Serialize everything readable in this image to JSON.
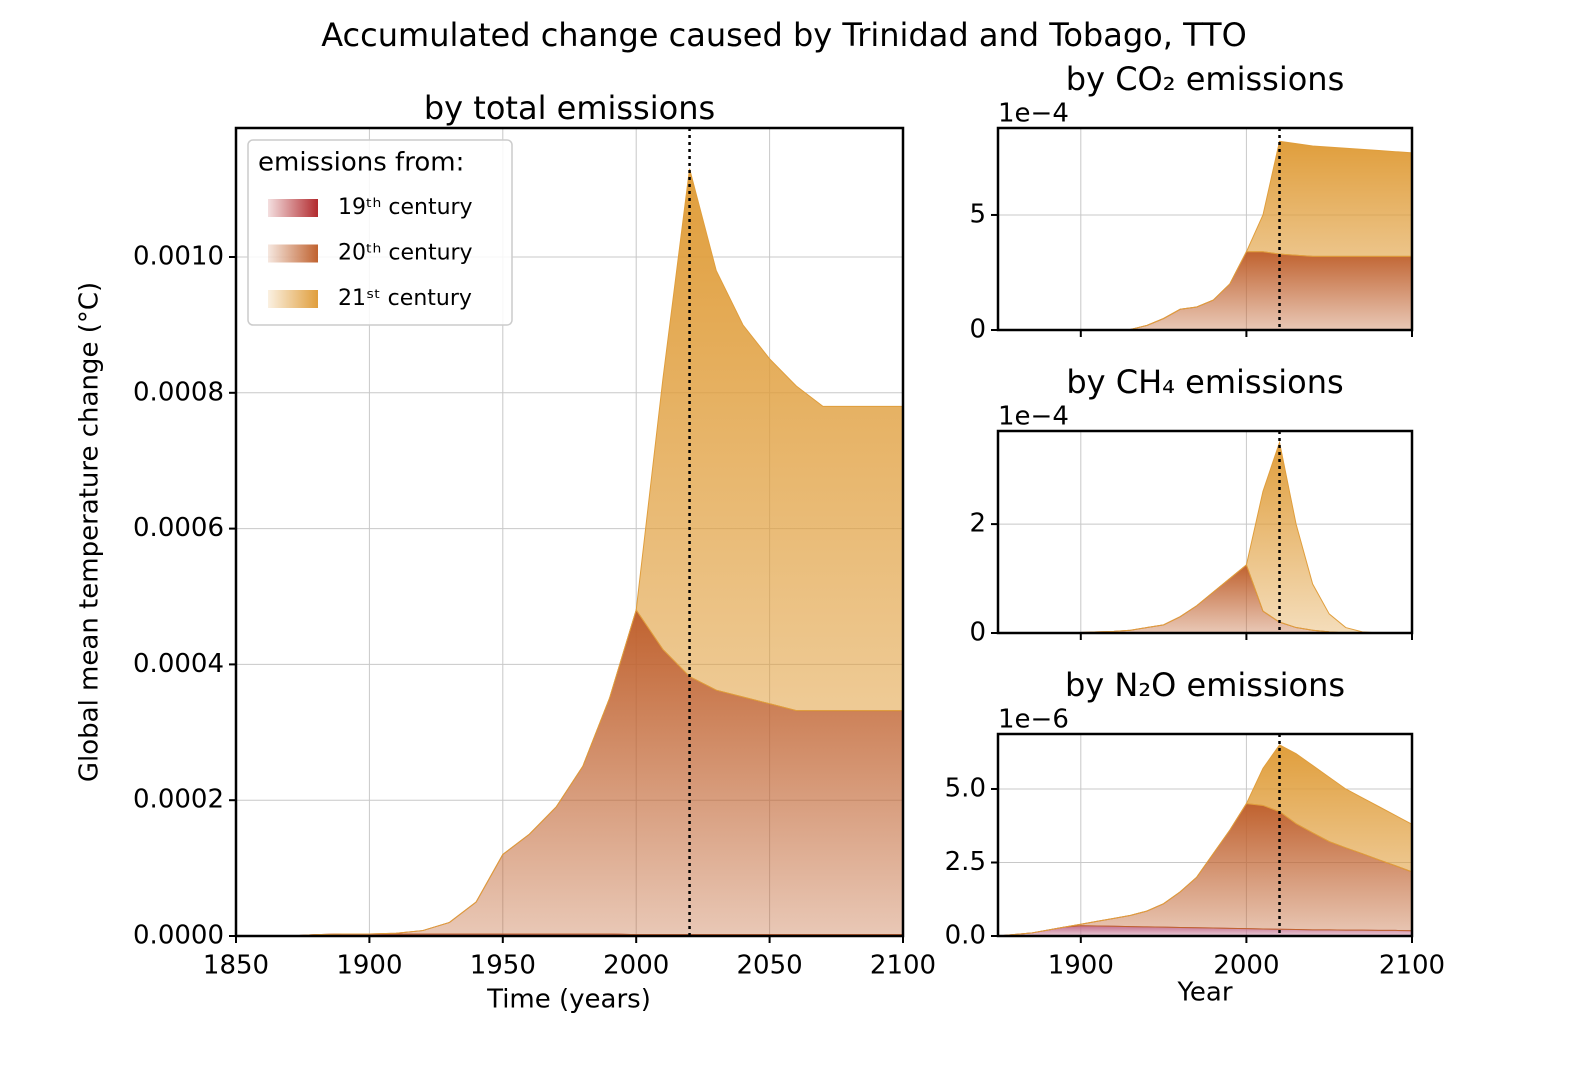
{
  "title": "Accumulated change caused by Trinidad and Tobago, TTO",
  "chart_data": [
    {
      "type": "area",
      "title": "by total emissions",
      "x_label": "Time (years)",
      "y_label": "Global mean temperature change (°C)",
      "x": [
        1850,
        1860,
        1870,
        1880,
        1890,
        1900,
        1910,
        1920,
        1930,
        1940,
        1950,
        1960,
        1970,
        1980,
        1990,
        2000,
        2010,
        2020,
        2030,
        2040,
        2050,
        2060,
        2070,
        2080,
        2090,
        2100
      ],
      "xlim": [
        1850,
        2100
      ],
      "xticks": [
        1850,
        1900,
        1950,
        2000,
        2050,
        2100
      ],
      "ylim": [
        0,
        0.00119
      ],
      "yticks": [
        {
          "value": 0,
          "label": "0.0000"
        },
        {
          "value": 0.0002,
          "label": "0.0002"
        },
        {
          "value": 0.0004,
          "label": "0.0004"
        },
        {
          "value": 0.0006,
          "label": "0.0006"
        },
        {
          "value": 0.0008,
          "label": "0.0008"
        },
        {
          "value": 0.001,
          "label": "0.0010"
        }
      ],
      "grid": true,
      "vline": 2020,
      "legend_title": "emissions from:",
      "legend": "upper left",
      "series": [
        {
          "name": "19ᵗʰ century",
          "color": "#b22a2e",
          "values": [
            0,
            0,
            0,
            2e-06,
            3e-06,
            3e-06,
            3e-06,
            3e-06,
            3e-06,
            3e-06,
            3e-06,
            3e-06,
            3e-06,
            3e-06,
            3e-06,
            2e-06,
            2e-06,
            2e-06,
            2e-06,
            2e-06,
            2e-06,
            2e-06,
            2e-06,
            2e-06,
            2e-06,
            2e-06
          ]
        },
        {
          "name": "20ᵗʰ century",
          "color": "#c0622f",
          "values": [
            0,
            0,
            0,
            0,
            0,
            0,
            1e-06,
            5e-06,
            1.7e-05,
            4.7e-05,
            0.000117,
            0.000147,
            0.000187,
            0.000247,
            0.000347,
            0.000478,
            0.00042,
            0.00038,
            0.00036,
            0.00035,
            0.00034,
            0.00033,
            0.00033,
            0.00033,
            0.00033,
            0.00033
          ]
        },
        {
          "name": "21ˢᵗ century",
          "color": "#e09e3c",
          "values": [
            0,
            0,
            0,
            0,
            0,
            0,
            0,
            0,
            0,
            0,
            0,
            0,
            0,
            0,
            0,
            0,
            0.000398,
            0.000748,
            0.000618,
            0.000548,
            0.000508,
            0.000478,
            0.000448,
            0.000448,
            0.000448,
            0.000448
          ]
        }
      ]
    },
    {
      "type": "area",
      "title": "by CO₂ emissions",
      "offset_label": "1e−4",
      "x": [
        1850,
        1860,
        1870,
        1880,
        1890,
        1900,
        1910,
        1920,
        1930,
        1940,
        1950,
        1960,
        1970,
        1980,
        1990,
        2000,
        2010,
        2020,
        2030,
        2040,
        2050,
        2060,
        2070,
        2080,
        2090,
        2100
      ],
      "xlim": [
        1850,
        2100
      ],
      "xticks": [
        1900,
        2000,
        2100
      ],
      "xtick_labels": false,
      "ylim": [
        0,
        8.78
      ],
      "yticks": [
        0,
        5
      ],
      "grid": true,
      "vline": 2020,
      "series": [
        {
          "color": "#b22a2e",
          "values": [
            0,
            0,
            0,
            0,
            0,
            0,
            0,
            0,
            0,
            0,
            0,
            0,
            0,
            0,
            0,
            0,
            0,
            0,
            0,
            0,
            0,
            0,
            0,
            0,
            0,
            0
          ]
        },
        {
          "color": "#c0622f",
          "values": [
            0,
            0,
            0,
            0,
            0,
            0,
            0,
            0,
            0.02,
            0.2,
            0.5,
            0.9,
            1.0,
            1.3,
            2.0,
            3.4,
            3.4,
            3.3,
            3.25,
            3.2,
            3.2,
            3.2,
            3.2,
            3.2,
            3.2,
            3.2
          ]
        },
        {
          "color": "#e09e3c",
          "values": [
            0,
            0,
            0,
            0,
            0,
            0,
            0,
            0,
            0,
            0,
            0,
            0,
            0,
            0,
            0,
            0,
            1.6,
            4.9,
            4.85,
            4.8,
            4.75,
            4.7,
            4.65,
            4.6,
            4.55,
            4.5
          ]
        }
      ]
    },
    {
      "type": "area",
      "title": "by CH₄ emissions",
      "offset_label": "1e−4",
      "x": [
        1850,
        1860,
        1870,
        1880,
        1890,
        1900,
        1910,
        1920,
        1930,
        1940,
        1950,
        1960,
        1970,
        1980,
        1990,
        2000,
        2010,
        2020,
        2030,
        2040,
        2050,
        2060,
        2070,
        2080,
        2090,
        2100
      ],
      "xlim": [
        1850,
        2100
      ],
      "xticks": [
        1900,
        2000,
        2100
      ],
      "xtick_labels": false,
      "ylim": [
        0,
        3.71
      ],
      "yticks": [
        0,
        2
      ],
      "grid": true,
      "vline": 2020,
      "series": [
        {
          "color": "#b22a2e",
          "values": [
            0,
            0,
            0,
            0,
            0,
            0,
            0,
            0,
            0,
            0,
            0,
            0,
            0,
            0,
            0,
            0,
            0,
            0,
            0,
            0,
            0,
            0,
            0,
            0,
            0,
            0
          ]
        },
        {
          "color": "#c0622f",
          "values": [
            0,
            0,
            0,
            0,
            0,
            0.01,
            0.02,
            0.03,
            0.05,
            0.1,
            0.15,
            0.3,
            0.5,
            0.75,
            1.0,
            1.25,
            0.4,
            0.2,
            0.1,
            0.05,
            0.02,
            0,
            0,
            0,
            0,
            0
          ]
        },
        {
          "color": "#e09e3c",
          "values": [
            0,
            0,
            0,
            0,
            0,
            0,
            0,
            0,
            0,
            0,
            0,
            0,
            0,
            0,
            0,
            0,
            2.2,
            3.3,
            1.9,
            0.85,
            0.33,
            0.1,
            0.02,
            0,
            0,
            0
          ]
        }
      ]
    },
    {
      "type": "area",
      "title": "by N₂O emissions",
      "offset_label": "1e−6",
      "x_label": "Year",
      "x": [
        1850,
        1860,
        1870,
        1880,
        1890,
        1900,
        1910,
        1920,
        1930,
        1940,
        1950,
        1960,
        1970,
        1980,
        1990,
        2000,
        2010,
        2020,
        2030,
        2040,
        2050,
        2060,
        2070,
        2080,
        2090,
        2100
      ],
      "xlim": [
        1850,
        2100
      ],
      "xticks": [
        1900,
        2000,
        2100
      ],
      "ylim": [
        0,
        6.87
      ],
      "yticks": [
        {
          "value": 0,
          "label": "0.0"
        },
        {
          "value": 2.5,
          "label": "2.5"
        },
        {
          "value": 5,
          "label": "5.0"
        }
      ],
      "grid": true,
      "vline": 2020,
      "series": [
        {
          "color": "#c4708e",
          "values": [
            0,
            0.05,
            0.1,
            0.2,
            0.3,
            0.35,
            0.34,
            0.33,
            0.32,
            0.31,
            0.3,
            0.29,
            0.28,
            0.27,
            0.26,
            0.25,
            0.24,
            0.23,
            0.22,
            0.21,
            0.21,
            0.2,
            0.2,
            0.19,
            0.19,
            0.18
          ]
        },
        {
          "color": "#c0622f",
          "values": [
            0,
            0,
            0,
            0,
            0,
            0.05,
            0.16,
            0.27,
            0.38,
            0.54,
            0.8,
            1.21,
            1.72,
            2.53,
            3.34,
            4.25,
            4.2,
            4.0,
            3.6,
            3.3,
            3.0,
            2.8,
            2.6,
            2.4,
            2.2,
            2.0
          ]
        },
        {
          "color": "#e09e3c",
          "values": [
            0,
            0,
            0,
            0,
            0,
            0,
            0,
            0,
            0,
            0,
            0,
            0,
            0,
            0,
            0,
            0,
            1.26,
            2.27,
            2.38,
            2.29,
            2.19,
            2.0,
            1.9,
            1.81,
            1.71,
            1.62
          ]
        }
      ]
    }
  ]
}
